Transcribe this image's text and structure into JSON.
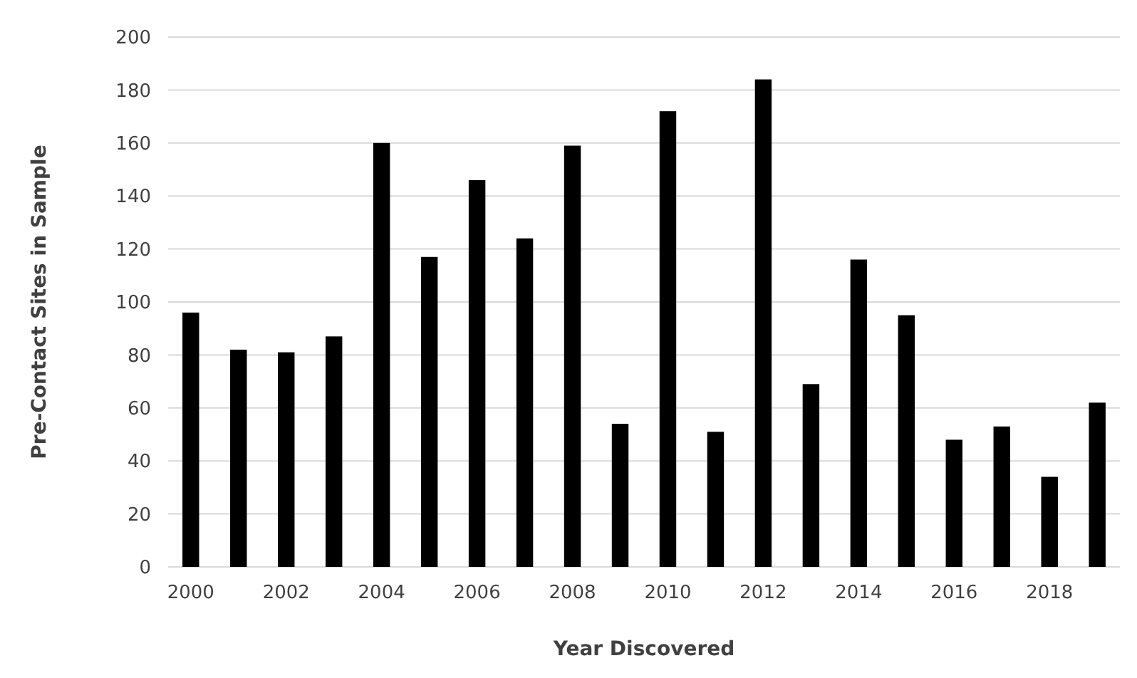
{
  "chart_data": {
    "type": "bar",
    "xlabel": "Year Discovered",
    "ylabel": "Pre-Contact Sites in Sample",
    "categories": [
      "2000",
      null,
      "2002",
      null,
      "2004",
      null,
      "2006",
      null,
      "2008",
      null,
      "2010",
      null,
      "2012",
      null,
      "2014",
      null,
      "2016",
      null,
      "2018",
      null
    ],
    "values": [
      96,
      82,
      81,
      87,
      160,
      117,
      146,
      124,
      159,
      54,
      172,
      51,
      184,
      69,
      116,
      95,
      48,
      53,
      34,
      62
    ],
    "color": "#000000",
    "ylim": [
      0,
      200
    ],
    "yticks": [
      0,
      20,
      40,
      60,
      80,
      100,
      120,
      140,
      160,
      180,
      200
    ],
    "grid": "y"
  }
}
